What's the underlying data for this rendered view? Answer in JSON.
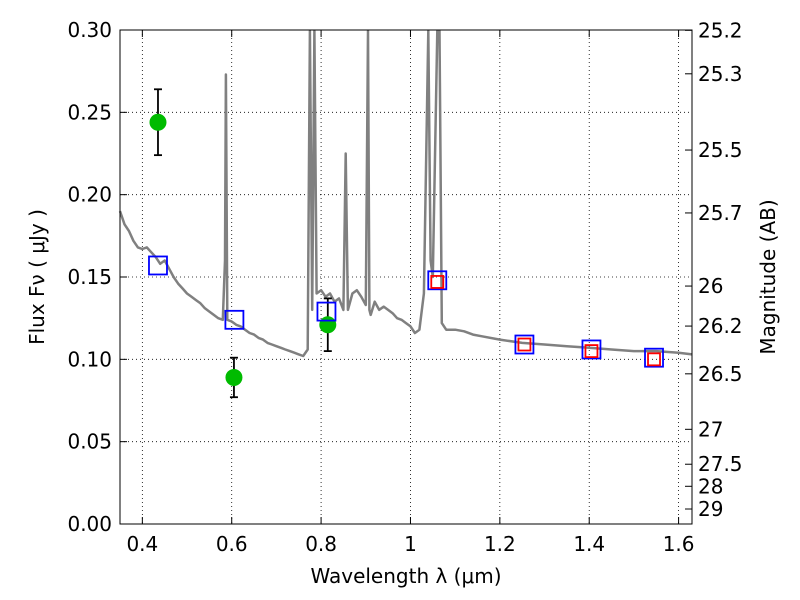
{
  "chart_data": {
    "type": "scatter",
    "title": "",
    "xlabel": "Wavelength  λ (μm)",
    "ylabel": "Flux  Fν  ( μJy )",
    "y2label": "Magnitude (AB)",
    "xlim": [
      0.35,
      1.63
    ],
    "ylim": [
      0.0,
      0.3
    ],
    "grid": true,
    "x_ticks": [
      {
        "value": 0.4,
        "label": "0.4"
      },
      {
        "value": 0.6,
        "label": "0.6"
      },
      {
        "value": 0.8,
        "label": "0.8"
      },
      {
        "value": 1.0,
        "label": "1"
      },
      {
        "value": 1.2,
        "label": "1.2"
      },
      {
        "value": 1.4,
        "label": "1.4"
      },
      {
        "value": 1.6,
        "label": "1.6"
      }
    ],
    "y_ticks": [
      {
        "value": 0.0,
        "label": "0.00"
      },
      {
        "value": 0.05,
        "label": "0.05"
      },
      {
        "value": 0.1,
        "label": "0.10"
      },
      {
        "value": 0.15,
        "label": "0.15"
      },
      {
        "value": 0.2,
        "label": "0.20"
      },
      {
        "value": 0.25,
        "label": "0.25"
      },
      {
        "value": 0.3,
        "label": "0.30"
      }
    ],
    "mag_ticks": [
      {
        "flux": 0.2998,
        "label": "25.2"
      },
      {
        "flux": 0.2734,
        "label": "25.3"
      },
      {
        "flux": 0.2271,
        "label": "25.5"
      },
      {
        "flux": 0.1889,
        "label": "25.7"
      },
      {
        "flux": 0.1445,
        "label": "26"
      },
      {
        "flux": 0.1202,
        "label": "26.2"
      },
      {
        "flux": 0.0912,
        "label": "26.5"
      },
      {
        "flux": 0.0575,
        "label": "27"
      },
      {
        "flux": 0.0363,
        "label": "27.5"
      },
      {
        "flux": 0.0229,
        "label": "28"
      },
      {
        "flux": 0.0091,
        "label": "29"
      }
    ],
    "series": [
      {
        "kind": "line",
        "color": "#808080",
        "x": [
          0.35,
          0.36,
          0.37,
          0.38,
          0.39,
          0.4,
          0.41,
          0.42,
          0.43,
          0.44,
          0.45,
          0.46,
          0.47,
          0.48,
          0.49,
          0.5,
          0.51,
          0.52,
          0.53,
          0.54,
          0.55,
          0.56,
          0.57,
          0.58,
          0.585,
          0.587,
          0.59,
          0.6,
          0.61,
          0.62,
          0.63,
          0.64,
          0.65,
          0.66,
          0.67,
          0.68,
          0.69,
          0.7,
          0.71,
          0.72,
          0.73,
          0.74,
          0.75,
          0.76,
          0.77,
          0.775,
          0.78,
          0.785,
          0.79,
          0.8,
          0.81,
          0.82,
          0.83,
          0.84,
          0.85,
          0.855,
          0.86,
          0.87,
          0.88,
          0.89,
          0.9,
          0.905,
          0.908,
          0.911,
          0.92,
          0.93,
          0.94,
          0.95,
          0.96,
          0.97,
          0.98,
          0.99,
          1.0,
          1.01,
          1.02,
          1.03,
          1.04,
          1.045,
          1.05,
          1.06,
          1.065,
          1.07,
          1.08,
          1.1,
          1.12,
          1.14,
          1.16,
          1.2,
          1.25,
          1.3,
          1.35,
          1.4,
          1.45,
          1.5,
          1.55,
          1.6,
          1.63
        ],
        "values": [
          0.19,
          0.182,
          0.178,
          0.172,
          0.168,
          0.167,
          0.168,
          0.165,
          0.162,
          0.158,
          0.16,
          0.155,
          0.15,
          0.146,
          0.143,
          0.14,
          0.138,
          0.136,
          0.134,
          0.131,
          0.129,
          0.127,
          0.125,
          0.124,
          0.16,
          0.273,
          0.124,
          0.123,
          0.121,
          0.12,
          0.118,
          0.116,
          0.115,
          0.113,
          0.112,
          0.11,
          0.109,
          0.108,
          0.107,
          0.106,
          0.105,
          0.104,
          0.103,
          0.102,
          0.106,
          0.3,
          0.13,
          0.3,
          0.14,
          0.142,
          0.138,
          0.14,
          0.135,
          0.137,
          0.13,
          0.225,
          0.13,
          0.14,
          0.142,
          0.138,
          0.133,
          0.3,
          0.13,
          0.127,
          0.135,
          0.13,
          0.132,
          0.13,
          0.128,
          0.125,
          0.124,
          0.122,
          0.12,
          0.116,
          0.118,
          0.14,
          0.3,
          0.16,
          0.15,
          0.3,
          0.3,
          0.122,
          0.118,
          0.118,
          0.117,
          0.115,
          0.114,
          0.112,
          0.11,
          0.109,
          0.108,
          0.107,
          0.106,
          0.105,
          0.105,
          0.104,
          0.103
        ]
      },
      {
        "kind": "points",
        "color": "#00bb00",
        "x": [
          0.435,
          0.605,
          0.815
        ],
        "values": [
          0.244,
          0.089,
          0.121
        ],
        "yerr": [
          0.02,
          0.012,
          0.016
        ]
      },
      {
        "kind": "open-squares",
        "color": "#0000ff",
        "x": [
          0.435,
          0.606,
          0.812,
          1.06,
          1.255,
          1.405,
          1.545
        ],
        "values": [
          0.157,
          0.124,
          0.129,
          0.148,
          0.109,
          0.106,
          0.101
        ]
      },
      {
        "kind": "small-open-squares",
        "color": "#ff0000",
        "x": [
          1.06,
          1.255,
          1.405,
          1.545
        ],
        "values": [
          0.147,
          0.109,
          0.105,
          0.1
        ]
      }
    ]
  }
}
